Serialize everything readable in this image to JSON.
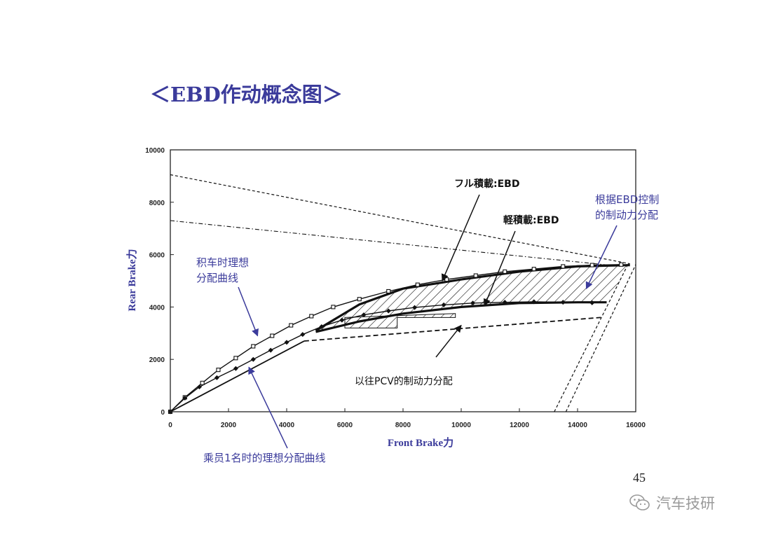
{
  "slide": {
    "title": "＜EBD作动概念图＞",
    "page_number": "45",
    "watermark": "汽车技研",
    "watermark_icon": "wechat-icon"
  },
  "colors": {
    "blue": "#3b3b9b",
    "black": "#111111"
  },
  "chart_data": {
    "type": "line",
    "xlabel": "Front Brake力",
    "ylabel": "Rear Brake力",
    "xlim": [
      0,
      16000
    ],
    "ylim": [
      0,
      10000
    ],
    "x_ticks": [
      "0",
      "2000",
      "4000",
      "6000",
      "8000",
      "10000",
      "12000",
      "14000",
      "16000"
    ],
    "y_ticks": [
      "0",
      "2000",
      "4000",
      "6000",
      "8000",
      "10000"
    ],
    "grid": false,
    "series": [
      {
        "name": "积车时理想分配曲线",
        "style": "solid-square-markers",
        "x": [
          0,
          500,
          1100,
          1650,
          2250,
          2850,
          3500,
          4150,
          4850,
          5600,
          6500,
          7500,
          8500,
          9500,
          10500,
          11500,
          12500,
          13500,
          14500,
          15500
        ],
        "y": [
          0,
          550,
          1100,
          1600,
          2050,
          2500,
          2900,
          3300,
          3650,
          4000,
          4300,
          4600,
          4850,
          5050,
          5200,
          5350,
          5450,
          5550,
          5600,
          5620
        ]
      },
      {
        "name": "乘员1名时的理想分配曲线",
        "style": "solid-diamond-markers",
        "x": [
          0,
          500,
          1000,
          1600,
          2250,
          2850,
          3450,
          4000,
          4550,
          5200,
          5900,
          6650,
          7500,
          8400,
          9400,
          10400,
          11500,
          12500,
          13500,
          14500
        ],
        "y": [
          0,
          520,
          950,
          1300,
          1650,
          2000,
          2350,
          2650,
          2950,
          3250,
          3500,
          3700,
          3850,
          3980,
          4080,
          4150,
          4180,
          4200,
          4180,
          4160
        ]
      },
      {
        "name": "フル積載:EBD",
        "style": "bold",
        "x": [
          5000,
          6500,
          8000,
          10000,
          12000,
          14000,
          15800
        ],
        "y": [
          3100,
          4100,
          4700,
          5050,
          5350,
          5550,
          5600
        ]
      },
      {
        "name": "軽積載:EBD",
        "style": "bold",
        "x": [
          5000,
          6500,
          8000,
          10000,
          12000,
          14000,
          15000
        ],
        "y": [
          3050,
          3450,
          3750,
          4000,
          4150,
          4180,
          4180
        ]
      },
      {
        "name": "以往PCV的制动力分配",
        "style": "solid-then-dash",
        "x": [
          0,
          4600,
          14800
        ],
        "y": [
          0,
          2700,
          3600
        ]
      },
      {
        "name": "",
        "style": "dashed",
        "x": [
          0,
          15800
        ],
        "y": [
          9050,
          5650
        ]
      },
      {
        "name": "",
        "style": "dash-dot",
        "x": [
          0,
          15500
        ],
        "y": [
          7300,
          5550
        ]
      },
      {
        "name": "",
        "style": "dashed",
        "x": [
          13200,
          15700
        ],
        "y": [
          0,
          5550
        ]
      },
      {
        "name": "",
        "style": "dashed",
        "x": [
          13600,
          16000
        ],
        "y": [
          0,
          5620
        ]
      }
    ],
    "hatched_region": {
      "upper": {
        "x": [
          5000,
          6500,
          8000,
          10000,
          12000,
          14000,
          15800
        ],
        "y": [
          3100,
          4100,
          4700,
          5050,
          5350,
          5550,
          5600
        ]
      },
      "lower": {
        "x": [
          15800,
          15000,
          14000,
          12000,
          10000,
          8000,
          6500,
          5000
        ],
        "y": [
          5600,
          4180,
          4180,
          4150,
          4000,
          3750,
          3450,
          3050
        ]
      }
    },
    "hatched_step": {
      "x": [
        6000,
        7800,
        7800,
        9800,
        9800,
        6000
      ],
      "y": [
        3200,
        3200,
        3600,
        3600,
        3750,
        3600
      ]
    },
    "annotations": [
      {
        "id": "full-load",
        "lines": [
          "フル積載:EBD"
        ],
        "bold": true,
        "color": "black",
        "arrow_to": [
          9350,
          5000
        ]
      },
      {
        "id": "light-load",
        "lines": [
          "軽積載:EBD"
        ],
        "bold": true,
        "color": "black",
        "arrow_to": [
          10800,
          4050
        ]
      },
      {
        "id": "ebd-control",
        "lines": [
          "根据EBD控制",
          "的制动力分配"
        ],
        "bold": false,
        "color": "blue",
        "arrow_to": [
          14300,
          4700
        ]
      },
      {
        "id": "loaded-ideal",
        "lines": [
          "积车时理想",
          "分配曲线"
        ],
        "bold": false,
        "color": "blue",
        "arrow_to": [
          3000,
          2900
        ]
      },
      {
        "id": "pcv",
        "lines": [
          "以往PCV的制动力分配"
        ],
        "bold": false,
        "color": "black",
        "arrow_to": [
          10000,
          3300
        ]
      },
      {
        "id": "one-person-ideal",
        "lines": [
          "乘员1名时的理想分配曲线"
        ],
        "bold": false,
        "color": "blue",
        "arrow_to": [
          2700,
          1700
        ]
      }
    ]
  }
}
